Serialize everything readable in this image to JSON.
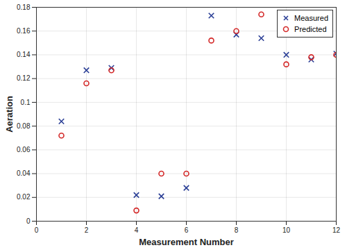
{
  "chart_data": {
    "type": "scatter",
    "x_label": "Measurement Number",
    "y_label": "Aeration",
    "x": [
      1,
      2,
      3,
      4,
      5,
      6,
      7,
      8,
      9,
      10,
      11,
      12
    ],
    "series": [
      {
        "name": "Measured",
        "color": "#2b3f96",
        "marker": "x",
        "values": [
          0.084,
          0.127,
          0.129,
          0.022,
          0.021,
          0.028,
          0.173,
          0.157,
          0.154,
          0.14,
          0.136,
          0.141
        ]
      },
      {
        "name": "Predicted",
        "color": "#d42a2a",
        "marker": "circle",
        "values": [
          0.072,
          0.116,
          0.127,
          0.009,
          0.04,
          0.04,
          0.152,
          0.16,
          0.174,
          0.132,
          0.138,
          0.14
        ]
      }
    ],
    "xlim": [
      0,
      12
    ],
    "xticks": [
      0,
      2,
      4,
      6,
      8,
      10,
      12
    ],
    "ylim": [
      0,
      0.18
    ],
    "yticks": [
      0,
      0.02,
      0.04,
      0.06,
      0.08,
      0.1,
      0.12,
      0.14,
      0.16,
      0.18
    ],
    "grid": true,
    "legend": "top-right"
  }
}
